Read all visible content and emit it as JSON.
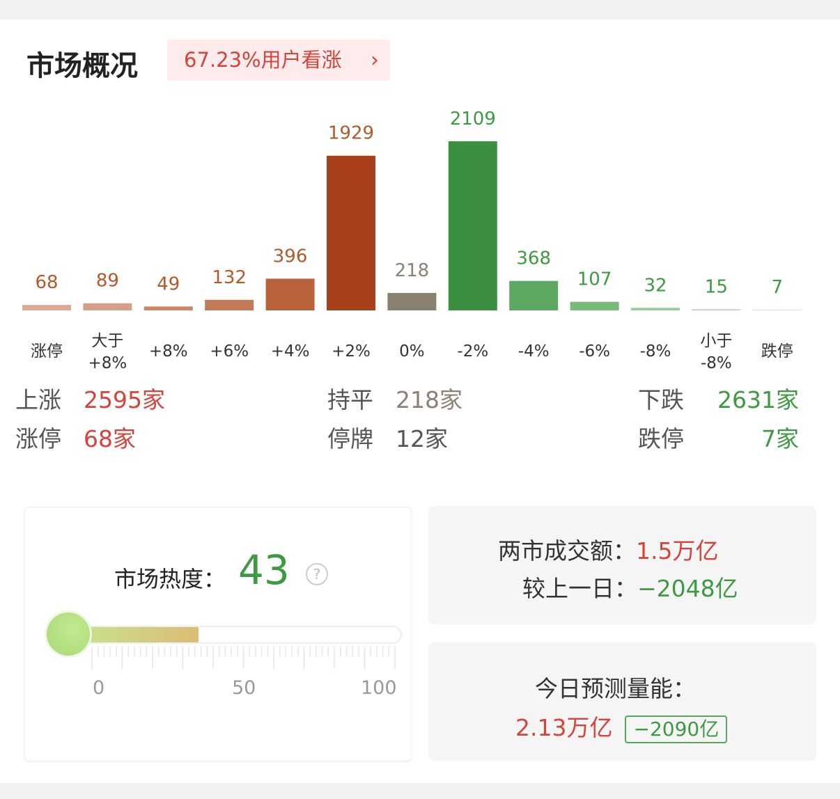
{
  "header": {
    "title": "市场概况",
    "sentiment_badge": "67.23%用户看涨",
    "chevron_icon": "chevron-right-icon"
  },
  "chart_data": {
    "type": "bar",
    "categories": [
      "涨停",
      "大于\n+8%",
      "+8%",
      "+6%",
      "+4%",
      "+2%",
      "0%",
      "-2%",
      "-4%",
      "-6%",
      "-8%",
      "小于\n-8%",
      "跌停"
    ],
    "values": [
      68,
      89,
      49,
      132,
      396,
      1929,
      218,
      2109,
      368,
      107,
      32,
      15,
      7
    ],
    "bar_colors": [
      "#dba997",
      "#d4a088",
      "#c98766",
      "#c27a56",
      "#b9633e",
      "#a8401c",
      "#8a8070",
      "#3b8f3e",
      "#5da860",
      "#79b97a",
      "#98c99a",
      "#b6d9b6",
      "#cfe5cf"
    ],
    "label_colors": [
      "#b5582a",
      "#b5582a",
      "#b5582a",
      "#b5582a",
      "#b5582a",
      "#b5582a",
      "#8a8275",
      "#3d9a42",
      "#3d9a42",
      "#3d9a42",
      "#3d9a42",
      "#3d9a42",
      "#3d9a42"
    ],
    "title": "",
    "xlabel": "",
    "ylabel": "",
    "grid": false
  },
  "stats": {
    "up_label": "上涨",
    "up_value": "2595家",
    "flat_label": "持平",
    "flat_value": "218家",
    "down_label": "下跌",
    "down_value": "2631家",
    "limit_up_label": "涨停",
    "limit_up_value": "68家",
    "suspended_label": "停牌",
    "suspended_value": "12家",
    "limit_down_label": "跌停",
    "limit_down_value": "7家"
  },
  "heat": {
    "label": "市场热度：",
    "value": "43",
    "level": 43,
    "help_icon": "question-circle-icon",
    "axis": [
      "0",
      "50",
      "100"
    ]
  },
  "turnover": {
    "label": "两市成交额：",
    "value": "1.5万亿",
    "compare_label": "较上一日：",
    "compare_value": "−2048亿"
  },
  "forecast": {
    "label": "今日预测量能：",
    "value": "2.13万亿",
    "delta": "−2090亿"
  },
  "colors": {
    "red": "#d6433b",
    "green": "#3d9a42",
    "badge_bg": "#fdeceb"
  }
}
